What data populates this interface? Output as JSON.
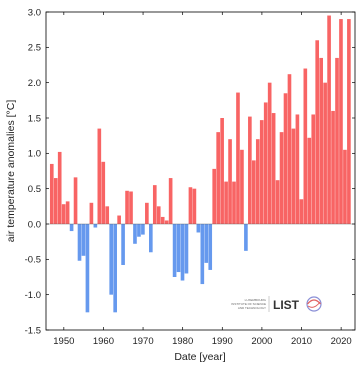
{
  "chart_data": {
    "type": "bar",
    "xlabel": "Date [year]",
    "ylabel": "air temperature anomalies [°C]",
    "xlim": [
      1945.5,
      2023.5
    ],
    "ylim": [
      -1.5,
      3.0
    ],
    "x_ticks": [
      1950,
      1960,
      1970,
      1980,
      1990,
      2000,
      2010,
      2020
    ],
    "y_ticks": [
      -1.5,
      -1.0,
      -0.5,
      0.0,
      0.5,
      1.0,
      1.5,
      2.0,
      2.5,
      3.0
    ],
    "y_tick_labels": [
      "-1.5",
      "-1.0",
      "-0.5",
      "0.0",
      "0.5",
      "1.0",
      "1.5",
      "2.0",
      "2.5",
      "3.0"
    ],
    "grid": false,
    "colors": {
      "positive": "#f86464",
      "negative": "#6699ee"
    },
    "series": [
      {
        "x": [
          1947,
          1948,
          1949,
          1950,
          1951,
          1952,
          1953,
          1954,
          1955,
          1956,
          1957,
          1958,
          1959,
          1960,
          1961,
          1962,
          1963,
          1964,
          1965,
          1966,
          1967,
          1968,
          1969,
          1970,
          1971,
          1972,
          1973,
          1974,
          1975,
          1976,
          1977,
          1978,
          1979,
          1980,
          1981,
          1982,
          1983,
          1984,
          1985,
          1986,
          1987,
          1988,
          1989,
          1990,
          1991,
          1992,
          1993,
          1994,
          1995,
          1996,
          1997,
          1998,
          1999,
          2000,
          2001,
          2002,
          2003,
          2004,
          2005,
          2006,
          2007,
          2008,
          2009,
          2010,
          2011,
          2012,
          2013,
          2014,
          2015,
          2016,
          2017,
          2018,
          2019,
          2020,
          2021,
          2022
        ],
        "values": [
          0.85,
          0.65,
          1.02,
          0.28,
          0.32,
          -0.1,
          0.66,
          -0.52,
          -0.45,
          -1.25,
          0.3,
          -0.05,
          1.35,
          0.88,
          0.25,
          -1.0,
          -1.25,
          0.12,
          -0.58,
          0.47,
          0.46,
          -0.28,
          -0.18,
          -0.15,
          0.3,
          -0.4,
          0.55,
          0.25,
          0.1,
          0.05,
          0.65,
          -0.75,
          -0.68,
          -0.8,
          -0.7,
          0.52,
          0.5,
          -0.12,
          -0.85,
          -0.55,
          -0.65,
          0.78,
          1.3,
          1.5,
          0.6,
          1.2,
          0.6,
          1.86,
          1.05,
          -0.38,
          1.52,
          0.9,
          1.2,
          1.47,
          1.72,
          2.0,
          1.57,
          0.62,
          1.3,
          1.85,
          2.12,
          1.35,
          1.55,
          0.35,
          2.2,
          1.22,
          1.55,
          2.6,
          2.35,
          2.0,
          2.95,
          1.6,
          2.35,
          2.9,
          1.05,
          2.9
        ]
      }
    ]
  },
  "logo": {
    "name": "LIST",
    "subtitle_lines": [
      "LUXEMBOURG",
      "INSTITUTE OF SCIENCE",
      "AND TECHNOLOGY"
    ]
  }
}
